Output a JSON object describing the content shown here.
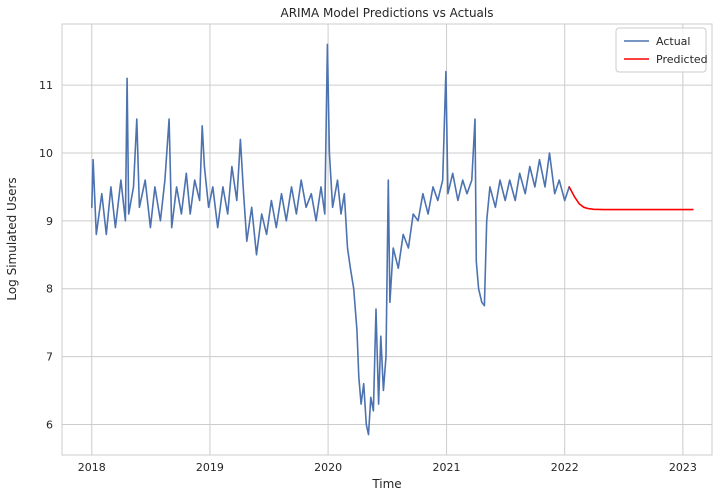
{
  "chart_data": {
    "type": "line",
    "title": "ARIMA Model Predictions vs Actuals",
    "xlabel": "Time",
    "ylabel": "Log Simulated Users",
    "xlim": [
      "2017-10-01",
      "2023-04-01"
    ],
    "ylim": [
      5.55,
      11.9
    ],
    "x_ticks": [
      "2018",
      "2019",
      "2020",
      "2021",
      "2022",
      "2023"
    ],
    "y_ticks": [
      6,
      7,
      8,
      9,
      10,
      11
    ],
    "grid": true,
    "legend_position": "upper right",
    "series": [
      {
        "name": "Actual",
        "color": "#4c72b0",
        "points": [
          [
            "2018-01-01",
            9.2
          ],
          [
            "2018-01-05",
            9.9
          ],
          [
            "2018-01-15",
            8.8
          ],
          [
            "2018-02-01",
            9.4
          ],
          [
            "2018-02-15",
            8.8
          ],
          [
            "2018-03-01",
            9.5
          ],
          [
            "2018-03-15",
            8.9
          ],
          [
            "2018-04-01",
            9.6
          ],
          [
            "2018-04-15",
            9.0
          ],
          [
            "2018-04-20",
            11.1
          ],
          [
            "2018-04-25",
            9.1
          ],
          [
            "2018-05-10",
            9.5
          ],
          [
            "2018-05-20",
            10.5
          ],
          [
            "2018-05-28",
            9.2
          ],
          [
            "2018-06-15",
            9.6
          ],
          [
            "2018-07-01",
            8.9
          ],
          [
            "2018-07-15",
            9.5
          ],
          [
            "2018-08-01",
            9.0
          ],
          [
            "2018-08-15",
            9.6
          ],
          [
            "2018-08-28",
            10.5
          ],
          [
            "2018-09-05",
            8.9
          ],
          [
            "2018-09-20",
            9.5
          ],
          [
            "2018-10-05",
            9.1
          ],
          [
            "2018-10-20",
            9.7
          ],
          [
            "2018-11-01",
            9.1
          ],
          [
            "2018-11-15",
            9.6
          ],
          [
            "2018-11-30",
            9.3
          ],
          [
            "2018-12-08",
            10.4
          ],
          [
            "2018-12-15",
            9.8
          ],
          [
            "2018-12-28",
            9.2
          ],
          [
            "2019-01-10",
            9.5
          ],
          [
            "2019-01-25",
            8.9
          ],
          [
            "2019-02-10",
            9.5
          ],
          [
            "2019-02-25",
            9.1
          ],
          [
            "2019-03-10",
            9.8
          ],
          [
            "2019-03-25",
            9.3
          ],
          [
            "2019-04-05",
            10.2
          ],
          [
            "2019-04-15",
            9.4
          ],
          [
            "2019-04-25",
            8.7
          ],
          [
            "2019-05-10",
            9.2
          ],
          [
            "2019-05-25",
            8.5
          ],
          [
            "2019-06-10",
            9.1
          ],
          [
            "2019-06-25",
            8.8
          ],
          [
            "2019-07-10",
            9.3
          ],
          [
            "2019-07-25",
            8.9
          ],
          [
            "2019-08-10",
            9.4
          ],
          [
            "2019-08-25",
            9.0
          ],
          [
            "2019-09-10",
            9.5
          ],
          [
            "2019-09-25",
            9.1
          ],
          [
            "2019-10-10",
            9.6
          ],
          [
            "2019-10-25",
            9.2
          ],
          [
            "2019-11-10",
            9.4
          ],
          [
            "2019-11-25",
            9.0
          ],
          [
            "2019-12-10",
            9.5
          ],
          [
            "2019-12-22",
            9.1
          ],
          [
            "2019-12-30",
            11.6
          ],
          [
            "2020-01-05",
            10.0
          ],
          [
            "2020-01-15",
            9.2
          ],
          [
            "2020-01-30",
            9.6
          ],
          [
            "2020-02-10",
            9.1
          ],
          [
            "2020-02-20",
            9.4
          ],
          [
            "2020-03-01",
            8.6
          ],
          [
            "2020-03-10",
            8.3
          ],
          [
            "2020-03-20",
            8.0
          ],
          [
            "2020-03-30",
            7.4
          ],
          [
            "2020-04-05",
            6.7
          ],
          [
            "2020-04-12",
            6.3
          ],
          [
            "2020-04-20",
            6.6
          ],
          [
            "2020-04-28",
            6.0
          ],
          [
            "2020-05-05",
            5.85
          ],
          [
            "2020-05-12",
            6.4
          ],
          [
            "2020-05-20",
            6.2
          ],
          [
            "2020-05-28",
            7.7
          ],
          [
            "2020-06-05",
            6.3
          ],
          [
            "2020-06-12",
            7.3
          ],
          [
            "2020-06-20",
            6.5
          ],
          [
            "2020-06-28",
            7.0
          ],
          [
            "2020-07-05",
            9.6
          ],
          [
            "2020-07-10",
            7.8
          ],
          [
            "2020-07-20",
            8.6
          ],
          [
            "2020-08-05",
            8.3
          ],
          [
            "2020-08-20",
            8.8
          ],
          [
            "2020-09-05",
            8.6
          ],
          [
            "2020-09-20",
            9.1
          ],
          [
            "2020-10-05",
            9.0
          ],
          [
            "2020-10-20",
            9.4
          ],
          [
            "2020-11-05",
            9.1
          ],
          [
            "2020-11-20",
            9.5
          ],
          [
            "2020-12-05",
            9.3
          ],
          [
            "2020-12-20",
            9.6
          ],
          [
            "2020-12-30",
            11.2
          ],
          [
            "2021-01-05",
            9.4
          ],
          [
            "2021-01-20",
            9.7
          ],
          [
            "2021-02-05",
            9.3
          ],
          [
            "2021-02-20",
            9.6
          ],
          [
            "2021-03-05",
            9.4
          ],
          [
            "2021-03-20",
            9.6
          ],
          [
            "2021-03-30",
            10.5
          ],
          [
            "2021-04-03",
            8.4
          ],
          [
            "2021-04-10",
            8.0
          ],
          [
            "2021-04-20",
            7.8
          ],
          [
            "2021-04-28",
            7.75
          ],
          [
            "2021-05-05",
            9.0
          ],
          [
            "2021-05-15",
            9.5
          ],
          [
            "2021-06-01",
            9.2
          ],
          [
            "2021-06-15",
            9.6
          ],
          [
            "2021-07-01",
            9.3
          ],
          [
            "2021-07-15",
            9.6
          ],
          [
            "2021-08-01",
            9.3
          ],
          [
            "2021-08-15",
            9.7
          ],
          [
            "2021-09-01",
            9.4
          ],
          [
            "2021-09-15",
            9.8
          ],
          [
            "2021-10-01",
            9.5
          ],
          [
            "2021-10-15",
            9.9
          ],
          [
            "2021-11-01",
            9.5
          ],
          [
            "2021-11-15",
            10.0
          ],
          [
            "2021-12-01",
            9.4
          ],
          [
            "2021-12-15",
            9.6
          ],
          [
            "2022-01-01",
            9.3
          ],
          [
            "2022-01-15",
            9.5
          ]
        ]
      },
      {
        "name": "Predicted",
        "color": "#ff0000",
        "points": [
          [
            "2022-01-15",
            9.5
          ],
          [
            "2022-02-01",
            9.35
          ],
          [
            "2022-02-15",
            9.25
          ],
          [
            "2022-03-01",
            9.2
          ],
          [
            "2022-03-15",
            9.18
          ],
          [
            "2022-04-01",
            9.17
          ],
          [
            "2022-05-01",
            9.165
          ],
          [
            "2022-07-01",
            9.165
          ],
          [
            "2022-10-01",
            9.165
          ],
          [
            "2023-01-01",
            9.165
          ],
          [
            "2023-02-01",
            9.165
          ]
        ]
      }
    ]
  }
}
